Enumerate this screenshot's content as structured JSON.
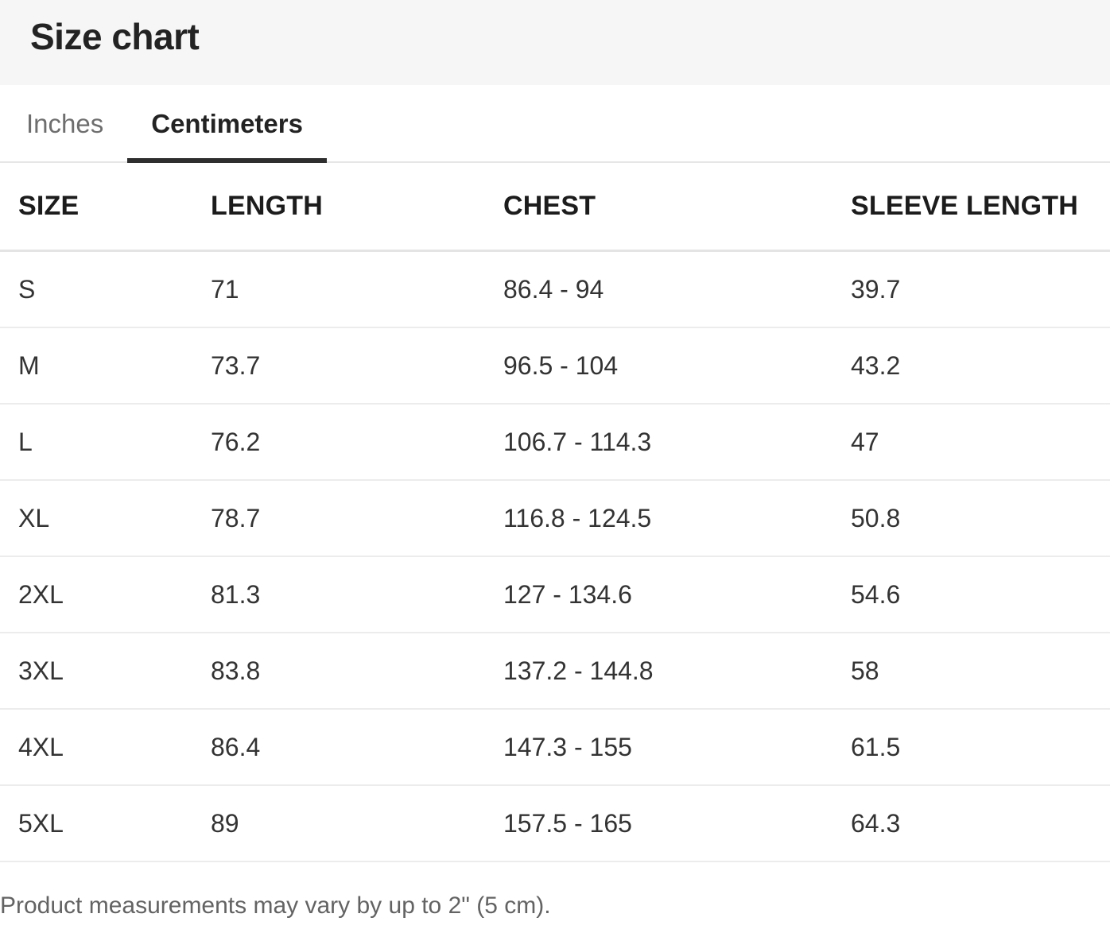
{
  "header": {
    "title": "Size chart"
  },
  "tabs": {
    "items": [
      {
        "label": "Inches",
        "active": false
      },
      {
        "label": "Centimeters",
        "active": true
      }
    ],
    "active_label": "Centimeters"
  },
  "table": {
    "columns": [
      "SIZE",
      "LENGTH",
      "CHEST",
      "SLEEVE LENGTH"
    ],
    "rows": [
      [
        "S",
        "71",
        "86.4 - 94",
        "39.7"
      ],
      [
        "M",
        "73.7",
        "96.5 - 104",
        "43.2"
      ],
      [
        "L",
        "76.2",
        "106.7 - 114.3",
        "47"
      ],
      [
        "XL",
        "78.7",
        "116.8 - 124.5",
        "50.8"
      ],
      [
        "2XL",
        "81.3",
        "127 - 134.6",
        "54.6"
      ],
      [
        "3XL",
        "83.8",
        "137.2 - 144.8",
        "58"
      ],
      [
        "4XL",
        "86.4",
        "147.3 - 155",
        "61.5"
      ],
      [
        "5XL",
        "89",
        "157.5 - 165",
        "64.3"
      ]
    ]
  },
  "footnote": "Product measurements may vary by up to 2\" (5 cm).",
  "colors": {
    "header_bg": "#f6f6f6",
    "active_tab_underline": "#2e2e2e",
    "tab_inactive_text": "#6e6e6e",
    "divider": "#ececec",
    "text_primary": "#232323",
    "text_secondary": "#636363"
  }
}
